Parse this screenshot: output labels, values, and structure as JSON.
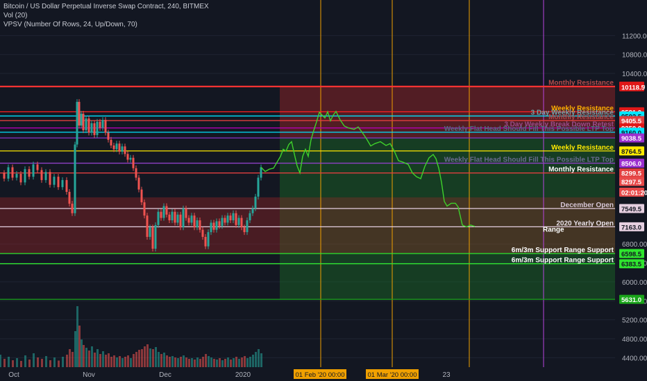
{
  "header": {
    "title": "Bitcoin / US Dollar Perpetual Inverse Swap Contract, 240, BITMEX",
    "vol": "Vol (20)",
    "vpsv": "VPSV (Number Of Rows, 24, Up/Down, 70)"
  },
  "chart_data": {
    "type": "line",
    "ylim": [
      4200,
      11600
    ],
    "y_ticks": [
      4400,
      4800,
      5200,
      5600,
      6000,
      6400,
      6800,
      10400,
      10800,
      11200
    ],
    "x_labels": [
      "Oct",
      "Nov",
      "Dec",
      "2020",
      "23"
    ],
    "date_markers": [
      "01 Feb '20   00:00",
      "01 Mar '20   00:00"
    ],
    "colors": {
      "background": "#131722",
      "up": "#26a69a",
      "down": "#ef5350",
      "projection": "#3fd22b",
      "event_line": "#f0a000",
      "event_line_violet": "#b845e0"
    },
    "levels": [
      {
        "price": 10132.0,
        "text": "Monthly Resistance",
        "color": "#ff3333",
        "label_color": "#b24b4b"
      },
      {
        "price": 10118.5,
        "text": "",
        "color": "#ff3333"
      },
      {
        "price": 9591.0,
        "text": "Weekly Resistance",
        "color": "#ff2222",
        "label_color": "#ffb000"
      },
      {
        "price": 9502.5,
        "text": "3 Day Weekly Resistance",
        "color": "#00e5ff",
        "label_color": "#6fa4a8"
      },
      {
        "price": 9405.5,
        "text": "Monthly Resistance",
        "color": "#e23f3f",
        "label_color": "#b24b4b"
      },
      {
        "price": 9250.0,
        "text": "3 Day Weekly Break Down Retest",
        "color": "#b200b2",
        "label_color": "#9a4b8a"
      },
      {
        "price": 9160.0,
        "text": "Weekly Flat Head Should Fill This Possible LTP Top",
        "color": "#00e5ff",
        "label_color": "#4f6f80"
      },
      {
        "price": 9038.5,
        "text": "",
        "color": "#8a32c8"
      },
      {
        "price": 8764.5,
        "text": "Weekly Resistance",
        "color": "#ffea00",
        "label_color": "#ffea00"
      },
      {
        "price": 8506.0,
        "text": "Weekly Flat Head Should Fill This Possible LTP Top",
        "color": "#9040c8",
        "label_color": "#6a6a90"
      },
      {
        "price": 8299.5,
        "text": "Monthly Resistance",
        "color": "#e23f3f",
        "label_color": "#ffffff"
      },
      {
        "price": 7549.5,
        "text": "December Open",
        "color": "#e5cfe0",
        "label_color": "#d8c8d8"
      },
      {
        "price": 7163.0,
        "text": "2020 Yearly Open",
        "color": "#e5cfe0",
        "label_color": "#e8e0e8"
      },
      {
        "price": 6598.5,
        "text": "6m/3m Support Range Support",
        "color": "#2fe52f",
        "label_color": "#ffffff"
      },
      {
        "price": 6383.5,
        "text": "6m/3m Support Range Support",
        "color": "#2fe52f",
        "label_color": "#ffffff"
      },
      {
        "price": 5631.0,
        "text": "",
        "color": "#1aa51a"
      }
    ],
    "axis_badges": [
      {
        "text": "10132.0",
        "price": 10132.0,
        "bg": "#e01818",
        "fg": "#ffffff"
      },
      {
        "text": "10118.5",
        "price": 10118.5,
        "bg": "#e01818",
        "fg": "#ffffff"
      },
      {
        "text": "9591.0",
        "price": 9591.0,
        "bg": "#e01818",
        "fg": "#ffffff"
      },
      {
        "text": "9502.5",
        "price": 9502.5,
        "bg": "#00e5ff",
        "fg": "#131722"
      },
      {
        "text": "9405.5",
        "price": 9405.5,
        "bg": "#e23f3f",
        "fg": "#ffffff"
      },
      {
        "text": "9250.0",
        "price": 9250.0,
        "bg": "#e01818",
        "fg": "#ffffff"
      },
      {
        "text": "9160.0",
        "price": 9160.0,
        "bg": "#00e5ff",
        "fg": "#131722"
      },
      {
        "text": "9038.5",
        "price": 9038.5,
        "bg": "#9b2fcf",
        "fg": "#ffffff"
      },
      {
        "text": "8764.5",
        "price": 8764.5,
        "bg": "#ffea00",
        "fg": "#131722"
      },
      {
        "text": "8506.0",
        "price": 8506.0,
        "bg": "#9b2fcf",
        "fg": "#ffffff"
      },
      {
        "text": "8299.5",
        "price": 8299.5,
        "bg": "#e23f3f",
        "fg": "#ffffff"
      },
      {
        "text": "8297.5",
        "price": 8120.0,
        "bg": "#e84a4a",
        "fg": "#ffffff"
      },
      {
        "text": "02:01:20",
        "price": 7895.0,
        "bg": "#e84a4a",
        "fg": "#ffffff"
      },
      {
        "text": "7549.5",
        "price": 7549.5,
        "bg": "#e5cfe0",
        "fg": "#131722"
      },
      {
        "text": "7163.0",
        "price": 7163.0,
        "bg": "#e5cfe0",
        "fg": "#131722"
      },
      {
        "text": "6598.5",
        "price": 6598.5,
        "bg": "#2fe52f",
        "fg": "#131722"
      },
      {
        "text": "6383.5",
        "price": 6383.5,
        "bg": "#2fe52f",
        "fg": "#131722"
      },
      {
        "text": "5631.0",
        "price": 5631.0,
        "bg": "#1aa51a",
        "fg": "#ffffff"
      }
    ],
    "zones": [
      {
        "from": 7785,
        "to": 6598.5,
        "color": "rgba(200,40,40,0.30)",
        "part": "history"
      },
      {
        "from": 10132,
        "to": 9038,
        "color": "rgba(200,40,40,0.35)",
        "part": "projection"
      },
      {
        "from": 9038,
        "to": 7785,
        "color": "rgba(30,150,40,0.30)",
        "part": "projection"
      },
      {
        "from": 7785,
        "to": 6598.5,
        "color": "rgba(160,110,40,0.35)",
        "part": "projection"
      },
      {
        "from": 6598.5,
        "to": 5631,
        "color": "rgba(30,150,40,0.30)",
        "part": "projection"
      }
    ],
    "price_series": [
      [
        0,
        8300
      ],
      [
        6,
        8180
      ],
      [
        12,
        8420
      ],
      [
        18,
        8200
      ],
      [
        24,
        8280
      ],
      [
        30,
        8100
      ],
      [
        36,
        8380
      ],
      [
        42,
        8220
      ],
      [
        48,
        8480
      ],
      [
        54,
        8360
      ],
      [
        60,
        8150
      ],
      [
        66,
        8320
      ],
      [
        72,
        8050
      ],
      [
        78,
        8220
      ],
      [
        84,
        8000
      ],
      [
        90,
        8150
      ],
      [
        96,
        7900
      ],
      [
        100,
        7650
      ],
      [
        104,
        7450
      ],
      [
        108,
        8900
      ],
      [
        111,
        9800
      ],
      [
        114,
        9300
      ],
      [
        117,
        9550
      ],
      [
        120,
        9200
      ],
      [
        124,
        9450
      ],
      [
        128,
        9150
      ],
      [
        132,
        9350
      ],
      [
        136,
        9100
      ],
      [
        140,
        9380
      ],
      [
        144,
        9250
      ],
      [
        148,
        9420
      ],
      [
        152,
        9150
      ],
      [
        156,
        9000
      ],
      [
        160,
        8880
      ],
      [
        164,
        8800
      ],
      [
        168,
        8920
      ],
      [
        172,
        8750
      ],
      [
        176,
        8860
      ],
      [
        180,
        8700
      ],
      [
        184,
        8580
      ],
      [
        188,
        8620
      ],
      [
        192,
        8400
      ],
      [
        196,
        8200
      ],
      [
        200,
        7950
      ],
      [
        204,
        7680
      ],
      [
        208,
        7400
      ],
      [
        212,
        6950
      ],
      [
        216,
        7150
      ],
      [
        220,
        6700
      ],
      [
        224,
        7200
      ],
      [
        228,
        7480
      ],
      [
        232,
        7350
      ],
      [
        236,
        7600
      ],
      [
        240,
        7420
      ],
      [
        244,
        7300
      ],
      [
        248,
        7480
      ],
      [
        252,
        7250
      ],
      [
        256,
        7420
      ],
      [
        260,
        7150
      ],
      [
        264,
        7550
      ],
      [
        268,
        7350
      ],
      [
        272,
        7250
      ],
      [
        276,
        7400
      ],
      [
        280,
        7150
      ],
      [
        284,
        7300
      ],
      [
        288,
        7100
      ],
      [
        292,
        6950
      ],
      [
        296,
        6750
      ],
      [
        300,
        7050
      ],
      [
        304,
        7250
      ],
      [
        308,
        7100
      ],
      [
        312,
        7280
      ],
      [
        316,
        7180
      ],
      [
        320,
        7350
      ],
      [
        324,
        7250
      ],
      [
        328,
        7400
      ],
      [
        332,
        7300
      ],
      [
        336,
        7450
      ],
      [
        340,
        7200
      ],
      [
        344,
        7350
      ],
      [
        348,
        7150
      ],
      [
        352,
        7050
      ],
      [
        356,
        7300
      ],
      [
        360,
        7450
      ],
      [
        364,
        7550
      ],
      [
        368,
        7800
      ],
      [
        372,
        8200
      ],
      [
        376,
        8420
      ]
    ],
    "projection_series": [
      [
        376,
        8420
      ],
      [
        382,
        8330
      ],
      [
        388,
        8380
      ],
      [
        394,
        8400
      ],
      [
        398,
        8500
      ],
      [
        404,
        8650
      ],
      [
        408,
        8800
      ],
      [
        412,
        8760
      ],
      [
        416,
        8900
      ],
      [
        420,
        8960
      ],
      [
        424,
        8700
      ],
      [
        428,
        8450
      ],
      [
        432,
        8300
      ],
      [
        436,
        8650
      ],
      [
        440,
        8800
      ],
      [
        444,
        8650
      ],
      [
        448,
        9000
      ],
      [
        452,
        9200
      ],
      [
        456,
        9380
      ],
      [
        460,
        9580
      ],
      [
        464,
        9520
      ],
      [
        468,
        9460
      ],
      [
        472,
        9590
      ],
      [
        476,
        9400
      ],
      [
        480,
        9520
      ],
      [
        484,
        9600
      ],
      [
        490,
        9420
      ],
      [
        496,
        9290
      ],
      [
        502,
        9250
      ],
      [
        510,
        9220
      ],
      [
        516,
        9270
      ],
      [
        522,
        9150
      ],
      [
        528,
        9020
      ],
      [
        534,
        8870
      ],
      [
        540,
        8920
      ],
      [
        548,
        8960
      ],
      [
        556,
        8880
      ],
      [
        562,
        8920
      ],
      [
        568,
        8760
      ],
      [
        574,
        8560
      ],
      [
        580,
        8530
      ],
      [
        588,
        8480
      ],
      [
        594,
        8300
      ],
      [
        600,
        8220
      ],
      [
        606,
        8180
      ],
      [
        612,
        8440
      ],
      [
        618,
        8620
      ],
      [
        624,
        8690
      ],
      [
        628,
        8600
      ],
      [
        632,
        8400
      ],
      [
        636,
        8100
      ],
      [
        640,
        7700
      ],
      [
        644,
        7600
      ],
      [
        650,
        7660
      ],
      [
        656,
        7660
      ],
      [
        660,
        7580
      ],
      [
        666,
        7200
      ],
      [
        672,
        7160
      ],
      [
        678,
        7200
      ],
      [
        684,
        7170
      ]
    ],
    "volume_series": [
      [
        0,
        180
      ],
      [
        6,
        120
      ],
      [
        12,
        150
      ],
      [
        18,
        100
      ],
      [
        24,
        130
      ],
      [
        30,
        90
      ],
      [
        36,
        170
      ],
      [
        42,
        110
      ],
      [
        48,
        200
      ],
      [
        54,
        140
      ],
      [
        60,
        120
      ],
      [
        66,
        160
      ],
      [
        72,
        100
      ],
      [
        78,
        140
      ],
      [
        84,
        95
      ],
      [
        90,
        150
      ],
      [
        96,
        180
      ],
      [
        100,
        260
      ],
      [
        104,
        220
      ],
      [
        108,
        520
      ],
      [
        111,
        880
      ],
      [
        114,
        600
      ],
      [
        117,
        400
      ],
      [
        120,
        320
      ],
      [
        124,
        280
      ],
      [
        128,
        240
      ],
      [
        132,
        300
      ],
      [
        136,
        210
      ],
      [
        140,
        260
      ],
      [
        144,
        190
      ],
      [
        148,
        230
      ],
      [
        152,
        180
      ],
      [
        156,
        200
      ],
      [
        160,
        150
      ],
      [
        164,
        170
      ],
      [
        168,
        140
      ],
      [
        172,
        160
      ],
      [
        176,
        130
      ],
      [
        180,
        150
      ],
      [
        184,
        170
      ],
      [
        188,
        130
      ],
      [
        192,
        190
      ],
      [
        196,
        220
      ],
      [
        200,
        250
      ],
      [
        204,
        260
      ],
      [
        208,
        300
      ],
      [
        212,
        330
      ],
      [
        216,
        270
      ],
      [
        220,
        260
      ],
      [
        224,
        290
      ],
      [
        228,
        220
      ],
      [
        232,
        190
      ],
      [
        236,
        210
      ],
      [
        240,
        170
      ],
      [
        244,
        150
      ],
      [
        248,
        160
      ],
      [
        252,
        140
      ],
      [
        256,
        130
      ],
      [
        260,
        150
      ],
      [
        264,
        170
      ],
      [
        268,
        140
      ],
      [
        272,
        120
      ],
      [
        276,
        130
      ],
      [
        280,
        110
      ],
      [
        284,
        140
      ],
      [
        288,
        120
      ],
      [
        292,
        150
      ],
      [
        296,
        190
      ],
      [
        300,
        160
      ],
      [
        304,
        140
      ],
      [
        308,
        120
      ],
      [
        312,
        110
      ],
      [
        316,
        130
      ],
      [
        320,
        100
      ],
      [
        324,
        120
      ],
      [
        328,
        140
      ],
      [
        332,
        110
      ],
      [
        336,
        130
      ],
      [
        340,
        150
      ],
      [
        344,
        120
      ],
      [
        348,
        140
      ],
      [
        352,
        160
      ],
      [
        356,
        130
      ],
      [
        360,
        150
      ],
      [
        364,
        180
      ],
      [
        368,
        220
      ],
      [
        372,
        260
      ],
      [
        376,
        200
      ]
    ],
    "range_label": "Range"
  }
}
